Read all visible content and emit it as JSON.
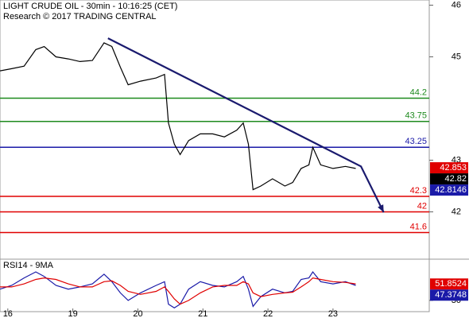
{
  "chart_data": [
    {
      "type": "line",
      "title": "LIGHT CRUDE OIL - 30min - 10:16:25 (CET)",
      "subtitle": "Research © 2017 TRADING CENTRAL",
      "x": [
        -0.12,
        0.06,
        0.25,
        0.43,
        0.56,
        0.74,
        0.93,
        1.11,
        1.3,
        1.48,
        1.6,
        1.73,
        1.85,
        2.04,
        2.28,
        2.41,
        2.47,
        2.56,
        2.65,
        2.78,
        2.96,
        3.15,
        3.33,
        3.52,
        3.62,
        3.7,
        3.77,
        3.89,
        4.07,
        4.26,
        4.38,
        4.51,
        4.63,
        4.69,
        4.81,
        5.0,
        5.19,
        5.35
      ],
      "xlim": [
        -0.12,
        6.48
      ],
      "xticks": [
        {
          "value": 0,
          "label": "16"
        },
        {
          "value": 1,
          "label": "19"
        },
        {
          "value": 2,
          "label": "20"
        },
        {
          "value": 3,
          "label": "21"
        },
        {
          "value": 4,
          "label": "22"
        },
        {
          "value": 5,
          "label": "23"
        }
      ],
      "ylim": [
        41.1,
        46.1
      ],
      "yticks": [
        42,
        43,
        45,
        46
      ],
      "series": [
        {
          "color": "#000000",
          "values": [
            44.73,
            44.77,
            44.82,
            45.14,
            45.2,
            45.0,
            44.96,
            44.91,
            44.93,
            45.27,
            45.2,
            44.8,
            44.46,
            44.53,
            44.59,
            44.66,
            43.72,
            43.31,
            43.11,
            43.38,
            43.51,
            43.51,
            43.45,
            43.58,
            43.72,
            43.31,
            42.43,
            42.5,
            42.64,
            42.5,
            42.57,
            42.84,
            42.91,
            43.25,
            42.91,
            42.84,
            42.88,
            42.84
          ]
        }
      ],
      "levels": [
        {
          "value": 44.2,
          "color": "#1e8a1e"
        },
        {
          "value": 43.75,
          "color": "#1e8a1e"
        },
        {
          "value": 43.25,
          "color": "#1a1aa8"
        },
        {
          "value": 42.3,
          "color": "#e00000"
        },
        {
          "value": 42,
          "color": "#e00000"
        },
        {
          "value": 41.6,
          "color": "#e00000"
        }
      ],
      "price_labels": [
        {
          "value": 42.853,
          "color": "#e00000"
        },
        {
          "value": 42.82,
          "color": "#000000"
        },
        {
          "value": 42.8146,
          "color": "#1a1aa8"
        }
      ],
      "trendline": {
        "color": "#1a1a6e",
        "x": [
          1.54,
          5.43,
          5.78
        ],
        "values": [
          45.36,
          42.88,
          41.99
        ]
      }
    },
    {
      "type": "line",
      "title": "RSI14 - 9MA",
      "ylim": [
        15,
        85
      ],
      "yticks": [
        30
      ],
      "series": [
        {
          "color": "#1a1aa8",
          "values": [
            45,
            50,
            60,
            68,
            62,
            50,
            45,
            48,
            52,
            65,
            55,
            40,
            30,
            40,
            50,
            55,
            25,
            20,
            25,
            45,
            55,
            50,
            48,
            55,
            62,
            45,
            22,
            35,
            45,
            40,
            42,
            58,
            60,
            68,
            55,
            52,
            55,
            50
          ]
        },
        {
          "color": "#e00000",
          "values": [
            48,
            48,
            52,
            58,
            60,
            58,
            52,
            48,
            48,
            55,
            56,
            50,
            42,
            38,
            42,
            48,
            42,
            32,
            25,
            30,
            40,
            48,
            50,
            50,
            55,
            52,
            40,
            35,
            38,
            40,
            41,
            48,
            55,
            60,
            58,
            55,
            54,
            52
          ]
        }
      ],
      "price_labels": [
        {
          "value": 51.8524,
          "color": "#e00000"
        },
        {
          "value": 47.3748,
          "color": "#1a1aa8"
        }
      ]
    }
  ]
}
